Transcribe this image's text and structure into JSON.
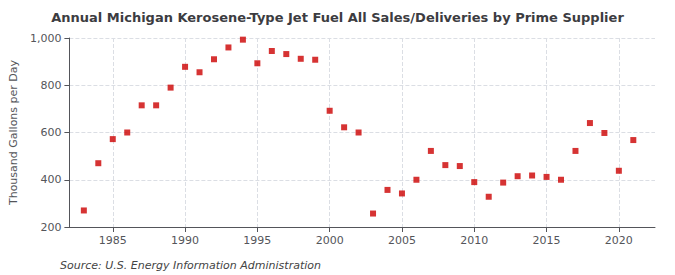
{
  "chart_data": {
    "type": "scatter",
    "title": "Annual Michigan Kerosene-Type Jet Fuel All Sales/Deliveries by Prime Supplier",
    "ylabel": "Thousand Gallons per Day",
    "annotations": [
      "Source: U.S. Energy Information Administration"
    ],
    "x": [
      1983,
      1984,
      1985,
      1986,
      1987,
      1988,
      1989,
      1990,
      1991,
      1992,
      1993,
      1994,
      1995,
      1996,
      1997,
      1998,
      1999,
      2000,
      2001,
      2002,
      2003,
      2004,
      2005,
      2006,
      2007,
      2008,
      2009,
      2010,
      2011,
      2012,
      2013,
      2014,
      2015,
      2016,
      2017,
      2018,
      2019,
      2020,
      2021
    ],
    "values": [
      270,
      470,
      572,
      600,
      715,
      715,
      790,
      878,
      855,
      910,
      960,
      993,
      893,
      945,
      932,
      912,
      908,
      692,
      622,
      600,
      257,
      357,
      342,
      400,
      522,
      462,
      458,
      390,
      328,
      388,
      415,
      418,
      412,
      400,
      522,
      640,
      598,
      438,
      568
    ],
    "color": "#cc0000",
    "marker": "square",
    "xlim": [
      1982,
      2022.5
    ],
    "xticks": [
      1985,
      1990,
      1995,
      2000,
      2005,
      2010,
      2015,
      2020
    ],
    "ylim": [
      200,
      1000
    ],
    "yticks": [
      200,
      400,
      600,
      800,
      {
        "value": 1000,
        "label": "1,000"
      }
    ],
    "grid": true
  }
}
